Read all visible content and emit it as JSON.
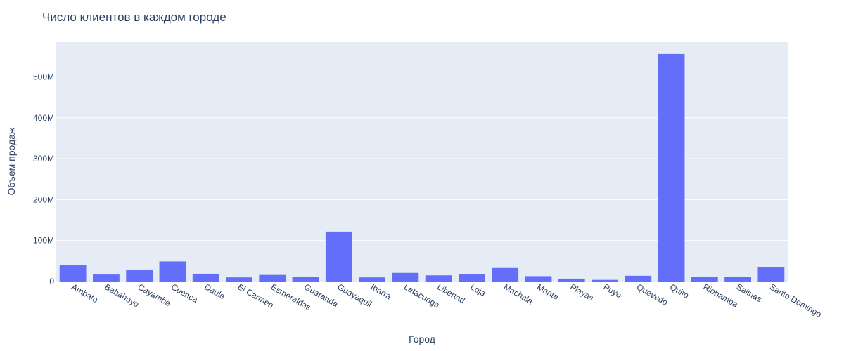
{
  "chart_data": {
    "type": "bar",
    "title": "Число клиентов в каждом городе",
    "xlabel": "Город",
    "ylabel": "Объем продаж",
    "categories": [
      "Ambato",
      "Babahoyo",
      "Cayambe",
      "Cuenca",
      "Daule",
      "El Carmen",
      "Esmeraldas",
      "Guaranda",
      "Guayaquil",
      "Ibarra",
      "Latacunga",
      "Libertad",
      "Loja",
      "Machala",
      "Manta",
      "Playas",
      "Puyo",
      "Quevedo",
      "Quito",
      "Riobamba",
      "Salinas",
      "Santo Domingo"
    ],
    "values": [
      40000000,
      17000000,
      28000000,
      49000000,
      19000000,
      10000000,
      16000000,
      12000000,
      122000000,
      10000000,
      21000000,
      15000000,
      18000000,
      33000000,
      13000000,
      7000000,
      4000000,
      14000000,
      556000000,
      11000000,
      11000000,
      36000000
    ],
    "ylim": [
      0,
      585000000
    ],
    "yticks": [
      0,
      100000000,
      200000000,
      300000000,
      400000000,
      500000000
    ],
    "ytick_labels": [
      "0",
      "100M",
      "200M",
      "300M",
      "400M",
      "500M"
    ],
    "bar_color": "#636efa",
    "plot_bg": "#e5ecf6",
    "grid": true
  }
}
